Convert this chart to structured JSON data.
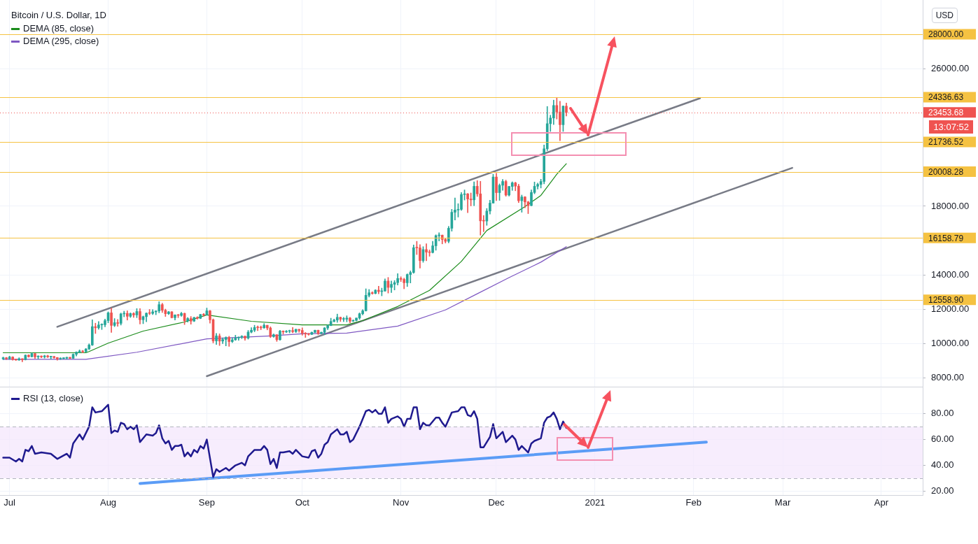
{
  "chart_data": [
    {
      "type": "candlestick",
      "title": "Bitcoin / U.S. Dollar, 1D",
      "colors": [
        "#26a69a",
        "#ef5350",
        "#26a69a",
        "#ef5350",
        "#ef5350",
        "#26a69a",
        "#ef5350",
        "#26a69a",
        "#ef5350",
        "#26a69a",
        "#ef5350",
        "#26a69a",
        "#ef5350",
        "#26a69a",
        "#ef5350",
        "#26a69a",
        "#ef5350",
        "#ef5350",
        "#26a69a",
        "#26a69a",
        "#26a69a",
        "#ef5350",
        "#26a69a",
        "#26a69a",
        "#26a69a",
        "#ef5350",
        "#26a69a",
        "#26a69a",
        "#26a69a",
        "#ef5350",
        "#26a69a",
        "#26a69a",
        "#26a69a",
        "#26a69a",
        "#ef5350",
        "#26a69a",
        "#ef5350",
        "#26a69a",
        "#26a69a",
        "#ef5350",
        "#26a69a",
        "#ef5350",
        "#26a69a",
        "#ef5350",
        "#26a69a",
        "#26a69a",
        "#ef5350",
        "#26a69a",
        "#26a69a",
        "#26a69a",
        "#ef5350",
        "#ef5350",
        "#26a69a",
        "#ef5350",
        "#26a69a",
        "#ef5350",
        "#26a69a",
        "#ef5350",
        "#26a69a",
        "#ef5350",
        "#26a69a",
        "#ef5350",
        "#26a69a",
        "#ef5350",
        "#26a69a",
        "#ef5350",
        "#ef5350",
        "#26a69a",
        "#ef5350",
        "#26a69a",
        "#26a69a",
        "#ef5350",
        "#26a69a",
        "#26a69a",
        "#26a69a",
        "#26a69a",
        "#ef5350",
        "#26a69a",
        "#26a69a",
        "#26a69a",
        "#ef5350",
        "#ef5350",
        "#26a69a",
        "#ef5350",
        "#ef5350",
        "#26a69a",
        "#ef5350",
        "#26a69a",
        "#ef5350",
        "#26a69a",
        "#26a69a",
        "#ef5350",
        "#26a69a",
        "#ef5350",
        "#ef5350",
        "#ef5350",
        "#ef5350",
        "#26a69a",
        "#26a69a",
        "#ef5350",
        "#26a69a",
        "#26a69a",
        "#26a69a",
        "#26a69a",
        "#26a69a",
        "#26a69a",
        "#ef5350",
        "#26a69a",
        "#26a69a",
        "#ef5350",
        "#26a69a",
        "#26a69a",
        "#26a69a",
        "#26a69a",
        "#26a69a",
        "#26a69a",
        "#ef5350",
        "#26a69a",
        "#ef5350",
        "#26a69a",
        "#26a69a",
        "#ef5350",
        "#26a69a",
        "#26a69a",
        "#26a69a",
        "#ef5350",
        "#ef5350",
        "#26a69a",
        "#26a69a",
        "#26a69a",
        "#ef5350",
        "#ef5350",
        "#26a69a",
        "#ef5350",
        "#ef5350",
        "#26a69a",
        "#26a69a",
        "#26a69a",
        "#ef5350",
        "#ef5350",
        "#26a69a",
        "#26a69a",
        "#26a69a",
        "#26a69a",
        "#26a69a",
        "#26a69a",
        "#ef5350",
        "#ef5350",
        "#26a69a",
        "#ef5350",
        "#ef5350",
        "#ef5350",
        "#26a69a",
        "#26a69a",
        "#26a69a",
        "#ef5350",
        "#26a69a",
        "#26a69a",
        "#ef5350",
        "#26a69a",
        "#26a69a",
        "#ef5350",
        "#ef5350",
        "#26a69a",
        "#ef5350",
        "#ef5350",
        "#26a69a",
        "#26a69a",
        "#26a69a",
        "#26a69a",
        "#26a69a",
        "#26a69a",
        "#26a69a",
        "#26a69a",
        "#ef5350",
        "#ef5350",
        "#26a69a",
        "#ef5350"
      ],
      "x": [
        "2020-06-29",
        "2020-06-30",
        "2020-07-01",
        "2020-07-02",
        "2020-07-03",
        "2020-07-04",
        "2020-07-05",
        "2020-07-06",
        "2020-07-07",
        "2020-07-08",
        "2020-07-09",
        "2020-07-10",
        "2020-07-11",
        "2020-07-12",
        "2020-07-13",
        "2020-07-14",
        "2020-07-15",
        "2020-07-16",
        "2020-07-17",
        "2020-07-18",
        "2020-07-19",
        "2020-07-20",
        "2020-07-21",
        "2020-07-22",
        "2020-07-23",
        "2020-07-24",
        "2020-07-25",
        "2020-07-26",
        "2020-07-27",
        "2020-07-28",
        "2020-07-29",
        "2020-07-30",
        "2020-07-31",
        "2020-08-01",
        "2020-08-02",
        "2020-08-03",
        "2020-08-04",
        "2020-08-05",
        "2020-08-06",
        "2020-08-07",
        "2020-08-08",
        "2020-08-09",
        "2020-08-10",
        "2020-08-11",
        "2020-08-12",
        "2020-08-13",
        "2020-08-14",
        "2020-08-15",
        "2020-08-16",
        "2020-08-17",
        "2020-08-18",
        "2020-08-19",
        "2020-08-20",
        "2020-08-21",
        "2020-08-22",
        "2020-08-23",
        "2020-08-24",
        "2020-08-25",
        "2020-08-26",
        "2020-08-27",
        "2020-08-28",
        "2020-08-29",
        "2020-08-30",
        "2020-08-31",
        "2020-09-01",
        "2020-09-02",
        "2020-09-03",
        "2020-09-04",
        "2020-09-05",
        "2020-09-06",
        "2020-09-07",
        "2020-09-08",
        "2020-09-09",
        "2020-09-10",
        "2020-09-11",
        "2020-09-12",
        "2020-09-13",
        "2020-09-14",
        "2020-09-15",
        "2020-09-16",
        "2020-09-17",
        "2020-09-18",
        "2020-09-19",
        "2020-09-20",
        "2020-09-21",
        "2020-09-22",
        "2020-09-23",
        "2020-09-24",
        "2020-09-25",
        "2020-09-26",
        "2020-09-27",
        "2020-09-28",
        "2020-09-29",
        "2020-09-30",
        "2020-10-01",
        "2020-10-02",
        "2020-10-03",
        "2020-10-04",
        "2020-10-05",
        "2020-10-06",
        "2020-10-07",
        "2020-10-08",
        "2020-10-09",
        "2020-10-10",
        "2020-10-11",
        "2020-10-12",
        "2020-10-13",
        "2020-10-14",
        "2020-10-15",
        "2020-10-16",
        "2020-10-17",
        "2020-10-18",
        "2020-10-19",
        "2020-10-20",
        "2020-10-21",
        "2020-10-22",
        "2020-10-23",
        "2020-10-24",
        "2020-10-25",
        "2020-10-26",
        "2020-10-27",
        "2020-10-28",
        "2020-10-29",
        "2020-10-30",
        "2020-10-31",
        "2020-11-01",
        "2020-11-02",
        "2020-11-03",
        "2020-11-04",
        "2020-11-05",
        "2020-11-06",
        "2020-11-07",
        "2020-11-08",
        "2020-11-09",
        "2020-11-10",
        "2020-11-11",
        "2020-11-12",
        "2020-11-13",
        "2020-11-14",
        "2020-11-15",
        "2020-11-16",
        "2020-11-17",
        "2020-11-18",
        "2020-11-19",
        "2020-11-20",
        "2020-11-21",
        "2020-11-22",
        "2020-11-23",
        "2020-11-24",
        "2020-11-25",
        "2020-11-26",
        "2020-11-27",
        "2020-11-28",
        "2020-11-29",
        "2020-11-30",
        "2020-12-01",
        "2020-12-02",
        "2020-12-03",
        "2020-12-04",
        "2020-12-05",
        "2020-12-06",
        "2020-12-07",
        "2020-12-08",
        "2020-12-09",
        "2020-12-10",
        "2020-12-11",
        "2020-12-12",
        "2020-12-13",
        "2020-12-14",
        "2020-12-15",
        "2020-12-16",
        "2020-12-17",
        "2020-12-18",
        "2020-12-19",
        "2020-12-20",
        "2020-12-21",
        "2020-12-22",
        "2020-12-23"
      ],
      "ohlc": [
        [
          9130,
          9230,
          9080,
          9190
        ],
        [
          9190,
          9210,
          9090,
          9140
        ],
        [
          9140,
          9280,
          9100,
          9230
        ],
        [
          9230,
          9250,
          9050,
          9090
        ],
        [
          9090,
          9120,
          9040,
          9060
        ],
        [
          9060,
          9190,
          9040,
          9130
        ],
        [
          9130,
          9140,
          8950,
          9080
        ],
        [
          9080,
          9360,
          9060,
          9340
        ],
        [
          9340,
          9360,
          9220,
          9250
        ],
        [
          9250,
          9470,
          9230,
          9430
        ],
        [
          9430,
          9440,
          9150,
          9240
        ],
        [
          9240,
          9310,
          9120,
          9290
        ],
        [
          9290,
          9300,
          9190,
          9240
        ],
        [
          9240,
          9340,
          9170,
          9300
        ],
        [
          9300,
          9340,
          9200,
          9240
        ],
        [
          9240,
          9280,
          9110,
          9260
        ],
        [
          9260,
          9270,
          9160,
          9200
        ],
        [
          9200,
          9210,
          9050,
          9130
        ],
        [
          9130,
          9190,
          9090,
          9150
        ],
        [
          9150,
          9190,
          9120,
          9170
        ],
        [
          9170,
          9230,
          9110,
          9210
        ],
        [
          9210,
          9220,
          9130,
          9160
        ],
        [
          9160,
          9420,
          9150,
          9390
        ],
        [
          9390,
          9540,
          9290,
          9520
        ],
        [
          9520,
          9650,
          9470,
          9580
        ],
        [
          9580,
          9620,
          9470,
          9540
        ],
        [
          9540,
          9730,
          9510,
          9700
        ],
        [
          9700,
          10000,
          9660,
          9930
        ],
        [
          9930,
          11400,
          9900,
          11000
        ],
        [
          11000,
          11200,
          10600,
          10930
        ],
        [
          10930,
          11300,
          10850,
          11100
        ],
        [
          11100,
          11170,
          10830,
          11110
        ],
        [
          11110,
          11440,
          10990,
          11350
        ],
        [
          11350,
          11860,
          11220,
          11800
        ],
        [
          11800,
          12080,
          10660,
          11070
        ],
        [
          11070,
          11470,
          11000,
          11230
        ],
        [
          11230,
          11420,
          11020,
          11190
        ],
        [
          11190,
          11790,
          11090,
          11740
        ],
        [
          11740,
          11900,
          11570,
          11770
        ],
        [
          11770,
          11920,
          11380,
          11600
        ],
        [
          11600,
          11800,
          11530,
          11760
        ],
        [
          11760,
          11810,
          11540,
          11680
        ],
        [
          11680,
          12050,
          11520,
          11880
        ],
        [
          11880,
          12050,
          11150,
          11400
        ],
        [
          11400,
          11620,
          11170,
          11580
        ],
        [
          11580,
          11800,
          11280,
          11780
        ],
        [
          11780,
          12000,
          11690,
          11770
        ],
        [
          11770,
          11990,
          11700,
          11860
        ],
        [
          11860,
          11930,
          11690,
          11910
        ],
        [
          11910,
          12450,
          11800,
          12280
        ],
        [
          12280,
          12360,
          11820,
          11950
        ],
        [
          11950,
          12020,
          11590,
          11750
        ],
        [
          11750,
          11890,
          11700,
          11860
        ],
        [
          11860,
          11880,
          11500,
          11520
        ],
        [
          11520,
          11690,
          11380,
          11680
        ],
        [
          11680,
          11720,
          11520,
          11650
        ],
        [
          11650,
          11830,
          11600,
          11770
        ],
        [
          11770,
          11790,
          11120,
          11340
        ],
        [
          11340,
          11530,
          11260,
          11470
        ],
        [
          11470,
          11590,
          11140,
          11320
        ],
        [
          11320,
          11550,
          11290,
          11530
        ],
        [
          11530,
          11580,
          11430,
          11480
        ],
        [
          11480,
          11710,
          11460,
          11710
        ],
        [
          11710,
          11760,
          11600,
          11680
        ],
        [
          11680,
          12080,
          11670,
          11920
        ],
        [
          11920,
          11950,
          11200,
          11400
        ],
        [
          11400,
          11450,
          10050,
          10170
        ],
        [
          10170,
          10600,
          9960,
          10460
        ],
        [
          10460,
          10580,
          9900,
          10160
        ],
        [
          10160,
          10350,
          10010,
          10250
        ],
        [
          10250,
          10410,
          9880,
          10370
        ],
        [
          10370,
          10440,
          9850,
          10130
        ],
        [
          10130,
          10350,
          10070,
          10230
        ],
        [
          10230,
          10500,
          10200,
          10340
        ],
        [
          10340,
          10400,
          10210,
          10390
        ],
        [
          10390,
          10480,
          10300,
          10440
        ],
        [
          10440,
          10460,
          10200,
          10330
        ],
        [
          10330,
          10780,
          10270,
          10680
        ],
        [
          10680,
          10940,
          10630,
          10790
        ],
        [
          10790,
          11080,
          10700,
          10950
        ],
        [
          10950,
          11040,
          10760,
          10940
        ],
        [
          10940,
          11040,
          10820,
          10930
        ],
        [
          10930,
          11180,
          10900,
          11080
        ],
        [
          11080,
          11080,
          10810,
          10920
        ],
        [
          10920,
          10990,
          10360,
          10420
        ],
        [
          10420,
          10570,
          10380,
          10530
        ],
        [
          10530,
          10540,
          10140,
          10240
        ],
        [
          10240,
          10790,
          10200,
          10740
        ],
        [
          10740,
          10760,
          10560,
          10690
        ],
        [
          10690,
          10780,
          10650,
          10730
        ],
        [
          10730,
          10800,
          10630,
          10770
        ],
        [
          10770,
          10950,
          10640,
          10710
        ],
        [
          10710,
          10860,
          10650,
          10840
        ],
        [
          10840,
          10850,
          10670,
          10780
        ],
        [
          10780,
          10930,
          10500,
          10620
        ],
        [
          10620,
          10660,
          10370,
          10570
        ],
        [
          10570,
          10600,
          10500,
          10550
        ],
        [
          10550,
          10690,
          10530,
          10670
        ],
        [
          10670,
          10800,
          10640,
          10790
        ],
        [
          10790,
          10800,
          10540,
          10600
        ],
        [
          10600,
          10690,
          10580,
          10670
        ],
        [
          10670,
          10950,
          10530,
          10920
        ],
        [
          10920,
          11100,
          10830,
          11060
        ],
        [
          11060,
          11490,
          11050,
          11300
        ],
        [
          11300,
          11440,
          11270,
          11380
        ],
        [
          11380,
          11730,
          11250,
          11540
        ],
        [
          11540,
          11560,
          11300,
          11430
        ],
        [
          11430,
          11540,
          11290,
          11430
        ],
        [
          11430,
          11630,
          11280,
          11500
        ],
        [
          11500,
          11540,
          11220,
          11320
        ],
        [
          11320,
          11400,
          11290,
          11360
        ],
        [
          11360,
          11500,
          11330,
          11500
        ],
        [
          11500,
          11800,
          11420,
          11750
        ],
        [
          11750,
          11990,
          11680,
          11920
        ],
        [
          11920,
          13200,
          11900,
          12820
        ],
        [
          12820,
          13160,
          12720,
          12970
        ],
        [
          12970,
          13030,
          12880,
          12930
        ],
        [
          12930,
          13150,
          12900,
          13120
        ],
        [
          13120,
          13350,
          12910,
          13040
        ],
        [
          13040,
          13240,
          12790,
          13070
        ],
        [
          13070,
          13780,
          13050,
          13650
        ],
        [
          13650,
          13860,
          12950,
          13280
        ],
        [
          13280,
          13650,
          12980,
          13460
        ],
        [
          13460,
          13680,
          13130,
          13560
        ],
        [
          13560,
          14080,
          13420,
          13800
        ],
        [
          13800,
          13900,
          13620,
          13750
        ],
        [
          13750,
          13820,
          13200,
          13550
        ],
        [
          13550,
          14070,
          13330,
          14030
        ],
        [
          14030,
          14240,
          13540,
          14150
        ],
        [
          14150,
          15750,
          14100,
          15590
        ],
        [
          15590,
          15960,
          15190,
          15580
        ],
        [
          15580,
          15770,
          14400,
          14840
        ],
        [
          14840,
          15650,
          14740,
          15480
        ],
        [
          15480,
          15820,
          14830,
          15330
        ],
        [
          15330,
          15460,
          15090,
          15310
        ],
        [
          15310,
          15960,
          15280,
          15700
        ],
        [
          15700,
          16340,
          15440,
          16290
        ],
        [
          16290,
          16460,
          15980,
          16320
        ],
        [
          16320,
          16330,
          15810,
          16070
        ],
        [
          16070,
          16140,
          15860,
          15960
        ],
        [
          15960,
          16830,
          15870,
          16720
        ],
        [
          16720,
          17820,
          16550,
          17650
        ],
        [
          17650,
          18480,
          17200,
          17780
        ],
        [
          17780,
          18150,
          17370,
          17820
        ],
        [
          17820,
          18800,
          17760,
          18680
        ],
        [
          18680,
          18950,
          18360,
          18720
        ],
        [
          18720,
          18750,
          17620,
          18420
        ],
        [
          18420,
          18770,
          18020,
          18370
        ],
        [
          18370,
          19420,
          18030,
          19160
        ],
        [
          19160,
          19490,
          18570,
          18720
        ],
        [
          18720,
          19450,
          16320,
          17150
        ],
        [
          17150,
          17460,
          16520,
          17140
        ],
        [
          17140,
          17870,
          16890,
          17720
        ],
        [
          17720,
          18350,
          17540,
          18180
        ],
        [
          18180,
          19860,
          18180,
          19700
        ],
        [
          19700,
          19920,
          18330,
          18790
        ],
        [
          18790,
          19300,
          18340,
          19220
        ],
        [
          19220,
          19560,
          18930,
          19440
        ],
        [
          19440,
          19520,
          18580,
          18650
        ],
        [
          18650,
          19160,
          18590,
          19150
        ],
        [
          19150,
          19420,
          18920,
          19360
        ],
        [
          19360,
          19400,
          18900,
          19170
        ],
        [
          19170,
          19280,
          18210,
          18320
        ],
        [
          18320,
          18650,
          17650,
          18540
        ],
        [
          18540,
          18560,
          17910,
          18250
        ],
        [
          18250,
          18290,
          17570,
          18040
        ],
        [
          18040,
          18950,
          18020,
          18800
        ],
        [
          18800,
          19410,
          18720,
          19160
        ],
        [
          19160,
          19350,
          19000,
          19270
        ],
        [
          19270,
          19570,
          19060,
          19440
        ],
        [
          19440,
          21560,
          19300,
          21340
        ],
        [
          21340,
          23800,
          21230,
          22800
        ],
        [
          22800,
          23290,
          22350,
          23130
        ],
        [
          23130,
          24170,
          22750,
          23860
        ],
        [
          23860,
          24290,
          23070,
          23480
        ],
        [
          23480,
          24100,
          21810,
          22740
        ],
        [
          22740,
          23840,
          22350,
          23820
        ],
        [
          23820,
          24000,
          23250,
          23450
        ]
      ],
      "series": [
        {
          "name": "DEMA (85, close)",
          "type": "line",
          "color": "#1b8c1b",
          "x": [
            "2020-06-29",
            "2020-07-25",
            "2020-07-26",
            "2020-08-01",
            "2020-08-12",
            "2020-08-25",
            "2020-09-01",
            "2020-09-15",
            "2020-10-01",
            "2020-10-15",
            "2020-10-20",
            "2020-10-31",
            "2020-11-10",
            "2020-11-20",
            "2020-11-28",
            "2020-12-10",
            "2020-12-15",
            "2020-12-20",
            "2020-12-23"
          ],
          "values": [
            9480,
            9480,
            9550,
            10040,
            10740,
            11270,
            11680,
            11310,
            11100,
            11100,
            11350,
            12170,
            13110,
            14790,
            16590,
            17980,
            18630,
            19860,
            20470
          ]
        },
        {
          "name": "DEMA (295, close)",
          "type": "line",
          "color": "#7e57c2",
          "x": [
            "2020-06-29",
            "2020-07-25",
            "2020-08-10",
            "2020-09-01",
            "2020-09-20",
            "2020-10-01",
            "2020-10-15",
            "2020-10-31",
            "2020-11-15",
            "2020-11-25",
            "2020-12-05",
            "2020-12-15",
            "2020-12-23"
          ],
          "values": [
            9100,
            9100,
            9510,
            10290,
            10450,
            10580,
            10620,
            11030,
            11970,
            12910,
            13850,
            14750,
            15650
          ]
        },
        {
          "type": "line",
          "color": "#787b86",
          "x": [
            "2020-07-16",
            "2021-02-03"
          ],
          "values": [
            10990,
            24280
          ]
        },
        {
          "type": "line",
          "color": "#787b86",
          "x": [
            "2020-09-01",
            "2021-03-04"
          ],
          "values": [
            8120,
            20230
          ]
        }
      ],
      "ref_lines": [
        {
          "axis": "y",
          "value": 28000,
          "label": "28000.00",
          "color": "#f5c242"
        },
        {
          "axis": "y",
          "value": 24336.63,
          "label": "24336.63",
          "color": "#f5c242"
        },
        {
          "axis": "y",
          "value": 23453.68,
          "label": "23453.68",
          "color": "#ef5350",
          "line_style": "dotted"
        },
        {
          "axis": "y",
          "value": 21736.52,
          "label": "21736.52",
          "color": "#f5c242"
        },
        {
          "axis": "y",
          "value": 20008.28,
          "label": "20008.28",
          "color": "#f5c242"
        },
        {
          "axis": "y",
          "value": 16158.79,
          "label": "16158.79",
          "color": "#f5c242"
        },
        {
          "axis": "y",
          "value": 12558.9,
          "label": "12558.90",
          "color": "#f5c242"
        }
      ],
      "annotations": [
        "USD",
        "13:07:52"
      ],
      "xlim": [
        "2020-06-28",
        "2021-04-14"
      ],
      "xticks": [
        {
          "value": "2020-07-01",
          "label": null
        },
        {
          "value": "2020-08-01",
          "label": null
        },
        {
          "value": "2020-09-01",
          "label": null
        },
        {
          "value": "2020-10-01",
          "label": null
        },
        {
          "value": "2020-11-01",
          "label": null
        },
        {
          "value": "2020-12-01",
          "label": null
        },
        {
          "value": "2021-01-01",
          "label": null
        },
        {
          "value": "2021-02-01",
          "label": null
        },
        {
          "value": "2021-03-01",
          "label": null
        },
        {
          "value": "2021-04-01",
          "label": null
        }
      ],
      "ylim": [
        7500,
        30000
      ],
      "yticks": [
        {
          "value": 8000,
          "label": "8000.00"
        },
        {
          "value": 10000,
          "label": "10000.00"
        },
        {
          "value": 12000,
          "label": "12000.00"
        },
        {
          "value": 14000,
          "label": "14000.00"
        },
        {
          "value": 18000,
          "label": "18000.00"
        },
        {
          "value": 26000,
          "label": "26000.00"
        }
      ],
      "grid": true,
      "legend": "top left",
      "tick_labels": "y"
    },
    {
      "type": "line",
      "series": [
        {
          "name": "RSI (13, close)",
          "color": "#1f1a8f",
          "x": [
            "2020-06-29",
            "2020-07-01",
            "2020-07-03",
            "2020-07-04",
            "2020-07-05",
            "2020-07-06",
            "2020-07-07",
            "2020-07-08",
            "2020-07-09",
            "2020-07-11",
            "2020-07-14",
            "2020-07-16",
            "2020-07-19",
            "2020-07-20",
            "2020-07-21",
            "2020-07-23",
            "2020-07-24",
            "2020-07-26",
            "2020-07-27",
            "2020-07-28",
            "2020-07-30",
            "2020-08-01",
            "2020-08-02",
            "2020-08-03",
            "2020-08-04",
            "2020-08-05",
            "2020-08-06",
            "2020-08-07",
            "2020-08-08",
            "2020-08-09",
            "2020-08-10",
            "2020-08-11",
            "2020-08-13",
            "2020-08-15",
            "2020-08-16",
            "2020-08-17",
            "2020-08-18",
            "2020-08-19",
            "2020-08-20",
            "2020-08-21",
            "2020-08-22",
            "2020-08-23",
            "2020-08-24",
            "2020-08-25",
            "2020-08-26",
            "2020-08-27",
            "2020-08-28",
            "2020-08-29",
            "2020-08-30",
            "2020-08-31",
            "2020-09-01",
            "2020-09-03",
            "2020-09-04",
            "2020-09-05",
            "2020-09-07",
            "2020-09-08",
            "2020-09-10",
            "2020-09-12",
            "2020-09-13",
            "2020-09-14",
            "2020-09-16",
            "2020-09-18",
            "2020-09-19",
            "2020-09-20",
            "2020-09-21",
            "2020-09-22",
            "2020-09-23",
            "2020-09-24",
            "2020-09-25",
            "2020-09-27",
            "2020-09-28",
            "2020-09-29",
            "2020-10-01",
            "2020-10-03",
            "2020-10-04",
            "2020-10-05",
            "2020-10-06",
            "2020-10-07",
            "2020-10-08",
            "2020-10-09",
            "2020-10-10",
            "2020-10-12",
            "2020-10-13",
            "2020-10-14",
            "2020-10-15",
            "2020-10-16",
            "2020-10-17",
            "2020-10-19",
            "2020-10-21",
            "2020-10-22",
            "2020-10-23",
            "2020-10-24",
            "2020-10-25",
            "2020-10-26",
            "2020-10-27",
            "2020-10-28",
            "2020-10-29",
            "2020-10-31",
            "2020-11-01",
            "2020-11-02",
            "2020-11-03",
            "2020-11-04",
            "2020-11-05",
            "2020-11-06",
            "2020-11-07",
            "2020-11-08",
            "2020-11-09",
            "2020-11-10",
            "2020-11-12",
            "2020-11-13",
            "2020-11-14",
            "2020-11-15",
            "2020-11-17",
            "2020-11-19",
            "2020-11-20",
            "2020-11-21",
            "2020-11-22",
            "2020-11-23",
            "2020-11-24",
            "2020-11-25",
            "2020-11-26",
            "2020-11-27",
            "2020-11-29",
            "2020-11-30",
            "2020-12-01",
            "2020-12-03",
            "2020-12-04",
            "2020-12-06",
            "2020-12-07",
            "2020-12-08",
            "2020-12-09",
            "2020-12-11",
            "2020-12-12",
            "2020-12-13",
            "2020-12-15",
            "2020-12-16",
            "2020-12-17",
            "2020-12-18",
            "2020-12-19",
            "2020-12-20",
            "2020-12-21",
            "2020-12-22",
            "2020-12-23"
          ],
          "values": [
            46,
            46,
            43,
            45,
            43,
            52,
            51,
            55,
            49,
            50,
            49,
            45,
            49,
            46,
            57,
            64,
            60,
            70,
            85,
            81,
            82,
            87,
            65,
            67,
            66,
            73,
            72,
            68,
            70,
            68,
            71,
            58,
            64,
            63,
            65,
            71,
            61,
            57,
            59,
            52,
            55,
            55,
            56,
            47,
            50,
            47,
            52,
            50,
            55,
            53,
            60,
            31,
            37,
            35,
            38,
            36,
            40,
            42,
            40,
            47,
            52,
            52,
            55,
            52,
            41,
            45,
            38,
            50,
            50,
            51,
            49,
            52,
            47,
            46,
            51,
            52,
            46,
            49,
            56,
            58,
            64,
            68,
            64,
            64,
            66,
            58,
            60,
            70,
            82,
            83,
            81,
            83,
            80,
            80,
            85,
            73,
            76,
            78,
            76,
            70,
            76,
            76,
            85,
            85,
            68,
            73,
            71,
            71,
            77,
            77,
            73,
            70,
            81,
            82,
            85,
            85,
            79,
            78,
            82,
            76,
            54,
            54,
            62,
            72,
            61,
            66,
            58,
            63,
            60,
            52,
            55,
            50,
            57,
            59,
            61,
            73,
            77,
            78,
            81,
            76,
            68,
            74,
            69
          ]
        },
        {
          "type": "line",
          "color": "#5b9cf6",
          "x": [
            "2020-08-11",
            "2021-02-05"
          ],
          "values": [
            26,
            58
          ]
        }
      ],
      "bands": [
        {
          "axis": "y",
          "from": 30,
          "to": 70,
          "color": "#f3e5fc"
        }
      ],
      "ref_lines": [
        {
          "axis": "y",
          "value": 70,
          "color": "#b2b5be",
          "line_style": "dashed"
        },
        {
          "axis": "y",
          "value": 30,
          "color": "#b2b5be",
          "line_style": "dashed"
        }
      ],
      "xlim": [
        "2020-06-28",
        "2021-04-14"
      ],
      "xticks": [
        {
          "value": "2020-07-01",
          "label": "Jul"
        },
        {
          "value": "2020-08-01",
          "label": "Aug"
        },
        {
          "value": "2020-09-01",
          "label": "Sep"
        },
        {
          "value": "2020-10-01",
          "label": "Oct"
        },
        {
          "value": "2020-11-01",
          "label": "Nov"
        },
        {
          "value": "2020-12-01",
          "label": "Dec"
        },
        {
          "value": "2021-01-01",
          "label": "2021"
        },
        {
          "value": "2021-02-01",
          "label": "Feb"
        },
        {
          "value": "2021-03-01",
          "label": "Mar"
        },
        {
          "value": "2021-04-01",
          "label": "Apr"
        }
      ],
      "ylim": [
        17,
        100
      ],
      "yticks": [
        {
          "value": 20,
          "label": "20.00"
        },
        {
          "value": 40,
          "label": "40.00"
        },
        {
          "value": 60,
          "label": "60.00"
        },
        {
          "value": 80,
          "label": "80.00"
        }
      ],
      "grid": true,
      "legend": "top left"
    }
  ]
}
